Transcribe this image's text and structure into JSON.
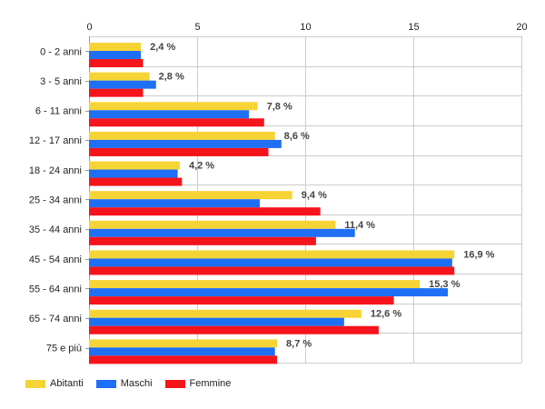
{
  "chart_data": {
    "type": "bar",
    "orientation": "horizontal",
    "categories": [
      "0 - 2 anni",
      "3 - 5 anni",
      "6 - 11 anni",
      "12 - 17 anni",
      "18 - 24 anni",
      "25 - 34 anni",
      "35 - 44 anni",
      "45 - 54 anni",
      "55 - 64 anni",
      "65 - 74 anni",
      "75 e più"
    ],
    "series": [
      {
        "name": "Abitanti",
        "color": "#f7d436",
        "values": [
          2.4,
          2.8,
          7.8,
          8.6,
          4.2,
          9.4,
          11.4,
          16.9,
          15.3,
          12.6,
          8.7
        ]
      },
      {
        "name": "Maschi",
        "color": "#1f6ff5",
        "values": [
          2.4,
          3.1,
          7.4,
          8.9,
          4.1,
          7.9,
          12.3,
          16.8,
          16.6,
          11.8,
          8.6
        ]
      },
      {
        "name": "Femmine",
        "color": "#f5141c",
        "values": [
          2.5,
          2.5,
          8.1,
          8.3,
          4.3,
          10.7,
          10.5,
          16.9,
          14.1,
          13.4,
          8.7
        ]
      }
    ],
    "data_labels": [
      "2,4 %",
      "2,8 %",
      "7,8 %",
      "8,6 %",
      "4,2 %",
      "9,4 %",
      "11,4 %",
      "16,9 %",
      "15,3 %",
      "12,6 %",
      "8,7 %"
    ],
    "xlim": [
      0,
      20
    ],
    "xticks": [
      0,
      5,
      10,
      15,
      20
    ],
    "grid": true,
    "axis_position": "top",
    "legend_position": "bottom-left"
  }
}
